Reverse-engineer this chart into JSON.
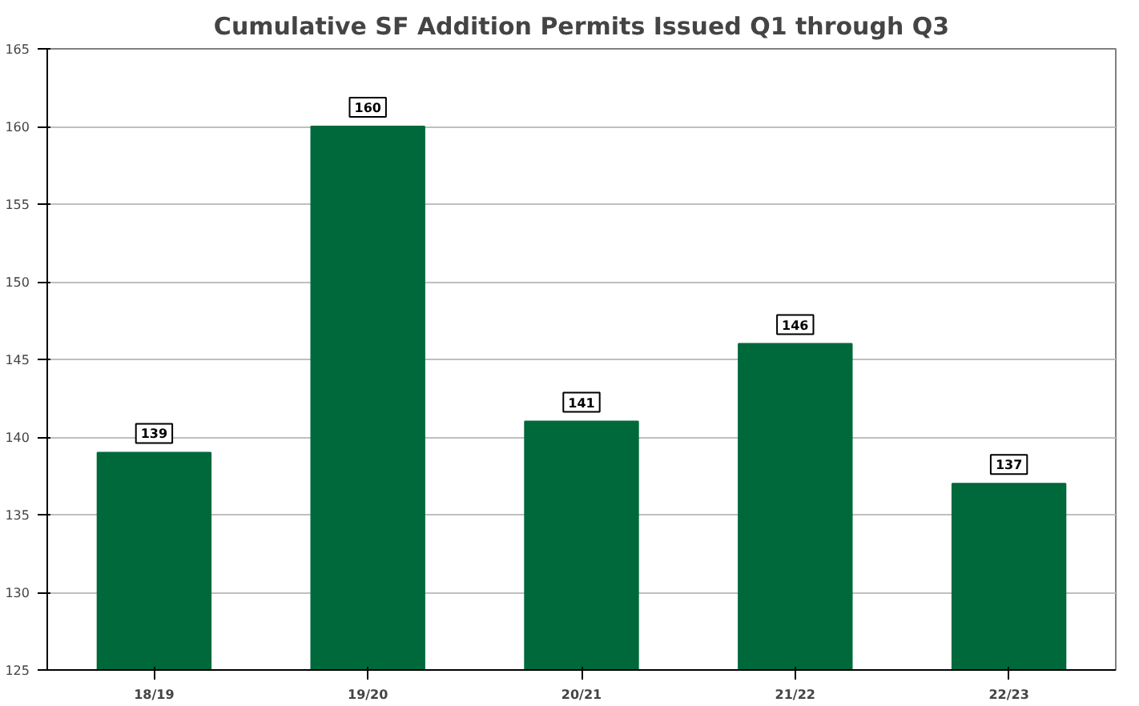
{
  "chart_data": {
    "type": "bar",
    "title": "Cumulative SF Addition Permits Issued Q1 through Q3",
    "categories": [
      "18/19",
      "19/20",
      "20/21",
      "21/22",
      "22/23"
    ],
    "values": [
      139,
      160,
      141,
      146,
      137
    ],
    "color": "#00693c",
    "ylim": [
      125,
      165
    ],
    "yticks": [
      125,
      130,
      135,
      140,
      145,
      150,
      155,
      160,
      165
    ],
    "grid": "y",
    "data_labels": true
  }
}
